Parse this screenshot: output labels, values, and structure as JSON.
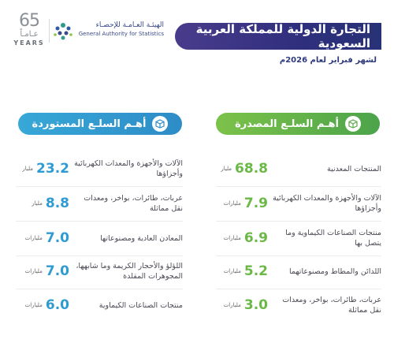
{
  "header": {
    "years_number": "65",
    "years_ar": "عـامـاً",
    "years_en": "YEARS",
    "org_ar": "الهيئـة العـامـة للإحصـاء",
    "org_en": "General Authority for Statistics",
    "title": "التجارة الدولية للمملكة العربية السعودية",
    "subtitle": "لشهر فبراير لعام 2026م"
  },
  "colors": {
    "title_bar": "#2f2f7d",
    "export_green": "#6bb847",
    "import_blue": "#2f9bd3"
  },
  "exports": {
    "heading": "أهـم السلـع المصدرة",
    "icon": "box-icon",
    "items": [
      {
        "label": "المنتجات المعدنية",
        "value": "68.8",
        "unit": "مليار"
      },
      {
        "label": "الآلات والأجهزة والمعدات الكهربائية وأجزاؤها",
        "value": "7.9",
        "unit": "مليارات"
      },
      {
        "label": "منتجات الصناعات الكيماوية وما يتصل بها",
        "value": "6.9",
        "unit": "مليارات"
      },
      {
        "label": "اللدائن والمطاط ومصنوعاتهما",
        "value": "5.2",
        "unit": "مليارات"
      },
      {
        "label": "عربات، طائرات، بواخر، ومعدات نقل مماثلة",
        "value": "3.0",
        "unit": "مليارات"
      }
    ]
  },
  "imports": {
    "heading": "أهـم السلـع المستوردة",
    "icon": "box-icon",
    "items": [
      {
        "label": "الآلات والأجهزة والمعدات الكهربائية وأجزاؤها",
        "value": "23.2",
        "unit": "مليار"
      },
      {
        "label": "عربات، طائرات، بواخر، ومعدات نقل مماثلة",
        "value": "8.8",
        "unit": "مليار"
      },
      {
        "label": "المعادن العادية ومصنوعاتها",
        "value": "7.0",
        "unit": "مليارات"
      },
      {
        "label": "اللؤلؤ والأحجار الكريمة وما شابهها، المجوهرات المقلدة",
        "value": "7.0",
        "unit": "مليارات"
      },
      {
        "label": "منتجات الصناعات الكيماوية",
        "value": "6.0",
        "unit": "مليارات"
      }
    ]
  }
}
